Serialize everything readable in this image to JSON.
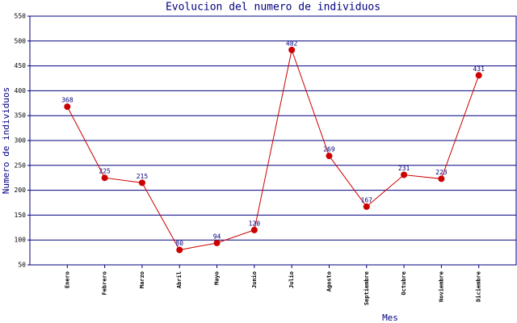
{
  "chart_data": {
    "type": "line",
    "title": "Evolucion del numero de individuos",
    "x_label": "Mes",
    "y_label": "Numero de individuos",
    "categories": [
      "Enero",
      "Febrero",
      "Marzo",
      "Abril",
      "Mayo",
      "Junio",
      "Julio",
      "Agosto",
      "Septiembre",
      "Octubre",
      "Noviembre",
      "Diciembre"
    ],
    "series": [
      {
        "name": "Numero de individuos",
        "color": "#cc0000",
        "values": [
          368,
          225,
          215,
          80,
          94,
          120,
          482,
          269,
          167,
          231,
          223,
          431
        ]
      }
    ],
    "ylim": [
      50,
      550
    ],
    "yticks": [
      50,
      100,
      150,
      200,
      250,
      300,
      350,
      400,
      450,
      500,
      550
    ],
    "grid": true,
    "data_labels": true
  }
}
